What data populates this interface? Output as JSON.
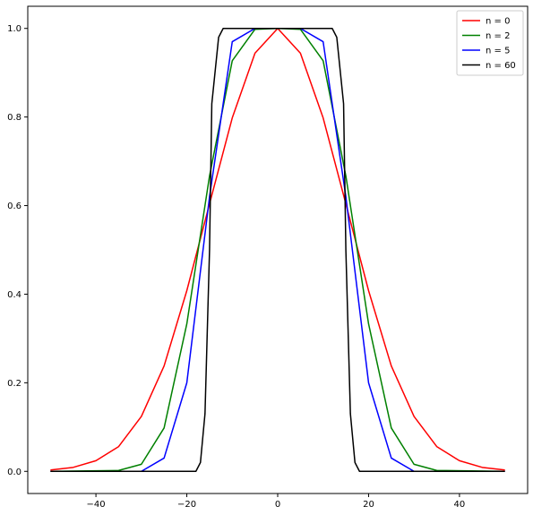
{
  "chart_data": {
    "type": "line",
    "title": "",
    "xlabel": "",
    "ylabel": "",
    "xlim": [
      -55,
      55
    ],
    "ylim": [
      -0.05,
      1.05
    ],
    "x_ticks": [
      -40,
      -20,
      0,
      20,
      40
    ],
    "x_tick_labels": [
      "−40",
      "−20",
      "0",
      "20",
      "40"
    ],
    "y_ticks": [
      0.0,
      0.2,
      0.4,
      0.6,
      0.8,
      1.0
    ],
    "y_tick_labels": [
      "0.0",
      "0.2",
      "0.4",
      "0.6",
      "0.8",
      "1.0"
    ],
    "grid": false,
    "legend_position": "top-right",
    "x_range": [
      -50,
      50
    ],
    "series": [
      {
        "name": "n = 0",
        "color": "#ff0000",
        "values": [
          [
            -50,
            0.003
          ],
          [
            -45,
            0.009
          ],
          [
            -40,
            0.024
          ],
          [
            -35,
            0.056
          ],
          [
            -30,
            0.124
          ],
          [
            -25,
            0.238
          ],
          [
            -20,
            0.408
          ],
          [
            -15,
            0.604
          ],
          [
            -10,
            0.798
          ],
          [
            -5,
            0.944
          ],
          [
            0,
            1.0
          ],
          [
            5,
            0.944
          ],
          [
            10,
            0.798
          ],
          [
            15,
            0.604
          ],
          [
            20,
            0.408
          ],
          [
            25,
            0.238
          ],
          [
            30,
            0.124
          ],
          [
            35,
            0.056
          ],
          [
            40,
            0.024
          ],
          [
            45,
            0.009
          ],
          [
            50,
            0.003
          ]
        ]
      },
      {
        "name": "n = 2",
        "color": "#008000",
        "values": [
          [
            -50,
            0.0
          ],
          [
            -35,
            0.002
          ],
          [
            -30,
            0.016
          ],
          [
            -25,
            0.098
          ],
          [
            -20,
            0.333
          ],
          [
            -15,
            0.667
          ],
          [
            -10,
            0.927
          ],
          [
            -5,
            0.998
          ],
          [
            0,
            1.0
          ],
          [
            5,
            0.998
          ],
          [
            10,
            0.927
          ],
          [
            15,
            0.667
          ],
          [
            20,
            0.333
          ],
          [
            25,
            0.098
          ],
          [
            30,
            0.016
          ],
          [
            35,
            0.002
          ],
          [
            50,
            0.0
          ]
        ]
      },
      {
        "name": "n = 5",
        "color": "#0000ff",
        "values": [
          [
            -50,
            0.0
          ],
          [
            -30,
            0.0
          ],
          [
            -25,
            0.03
          ],
          [
            -20,
            0.2
          ],
          [
            -15,
            0.62
          ],
          [
            -10,
            0.97
          ],
          [
            -5,
            1.0
          ],
          [
            0,
            1.0
          ],
          [
            5,
            1.0
          ],
          [
            10,
            0.97
          ],
          [
            15,
            0.62
          ],
          [
            20,
            0.2
          ],
          [
            25,
            0.03
          ],
          [
            30,
            0.0
          ],
          [
            50,
            0.0
          ]
        ]
      },
      {
        "name": "n = 60",
        "color": "#000000",
        "values": [
          [
            -50,
            0.0
          ],
          [
            -18,
            0.0
          ],
          [
            -17,
            0.02
          ],
          [
            -16,
            0.13
          ],
          [
            -15,
            0.5
          ],
          [
            -14.5,
            0.83
          ],
          [
            -13,
            0.98
          ],
          [
            -12,
            1.0
          ],
          [
            12,
            1.0
          ],
          [
            13,
            0.98
          ],
          [
            14.5,
            0.83
          ],
          [
            15,
            0.5
          ],
          [
            16,
            0.13
          ],
          [
            17,
            0.02
          ],
          [
            18,
            0.0
          ],
          [
            50,
            0.0
          ]
        ]
      }
    ]
  }
}
